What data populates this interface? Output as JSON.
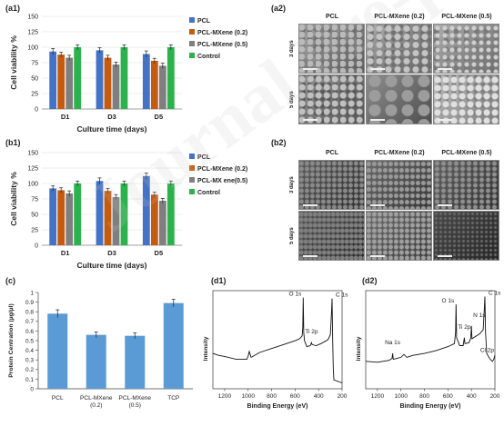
{
  "panel_tags": {
    "a1": "(a1)",
    "a2": "(a2)",
    "b1": "(b1)",
    "b2": "(b2)",
    "c": "(c)",
    "d1": "(d1)",
    "d2": "(d2)"
  },
  "colors": {
    "PCL": "#4472c4",
    "PCL-MXene (0.2)": "#c55a11",
    "PCL-MXene (0.5)": "#7f7f7f",
    "Control": "#2bb24c",
    "protein_bar": "#5b9bd5"
  },
  "chart_data": [
    {
      "id": "a1",
      "type": "bar",
      "title": "",
      "xlabel": "Culture time (days)",
      "ylabel": "Cell viability %",
      "categories": [
        "D1",
        "D3",
        "D5"
      ],
      "ylim": [
        0,
        150
      ],
      "yticks": [
        0,
        25,
        50,
        75,
        100,
        125,
        150
      ],
      "legend_position": "right",
      "series": [
        {
          "name": "PCL",
          "values": [
            93,
            95,
            89
          ],
          "errors": [
            5,
            4,
            5
          ]
        },
        {
          "name": "PCL-MXene (0.2)",
          "values": [
            88,
            83,
            78
          ],
          "errors": [
            4,
            4,
            4
          ]
        },
        {
          "name": "PCL-MXene (0.5)",
          "values": [
            83,
            72,
            70
          ],
          "errors": [
            4,
            4,
            4
          ]
        },
        {
          "name": "Control",
          "values": [
            100,
            100,
            100
          ],
          "errors": [
            4,
            4,
            4
          ]
        }
      ]
    },
    {
      "id": "b1",
      "type": "bar",
      "title": "",
      "xlabel": "Culture time (days)",
      "ylabel": "Cell viability %",
      "categories": [
        "D1",
        "D3",
        "D5"
      ],
      "ylim": [
        0,
        150
      ],
      "yticks": [
        0,
        25,
        50,
        75,
        100,
        125,
        150
      ],
      "legend_position": "right",
      "series": [
        {
          "name": "PCL",
          "values": [
            92,
            104,
            112
          ],
          "errors": [
            4,
            5,
            5
          ]
        },
        {
          "name": "PCL-MXene (0.2)",
          "values": [
            89,
            88,
            82
          ],
          "errors": [
            4,
            4,
            4
          ]
        },
        {
          "name": "PCL-MX ene(0.5)",
          "values": [
            84,
            78,
            72
          ],
          "errors": [
            4,
            4,
            4
          ]
        },
        {
          "name": "Control",
          "values": [
            100,
            100,
            100
          ],
          "errors": [
            4,
            4,
            4
          ]
        }
      ]
    },
    {
      "id": "c",
      "type": "bar",
      "title": "",
      "xlabel": "",
      "ylabel": "Protein Centration (µg/µl)",
      "categories": [
        "PCL",
        "PCL-MXene (0.2)",
        "PCL-MXene (0.5)",
        "TCP"
      ],
      "ylim": [
        0,
        1
      ],
      "yticks": [
        0,
        0.1,
        0.2,
        0.3,
        0.4,
        0.5,
        0.6,
        0.7,
        0.8,
        0.9,
        1
      ],
      "values": [
        0.78,
        0.56,
        0.55,
        0.89
      ],
      "errors": [
        0.04,
        0.03,
        0.03,
        0.04
      ]
    },
    {
      "id": "d1",
      "type": "line",
      "xlabel": "Binding Energy (eV)",
      "ylabel": "Intensity",
      "xlim": [
        1300,
        200
      ],
      "xticks": [
        1200,
        1000,
        800,
        600,
        400,
        200
      ],
      "annotations": [
        {
          "text": "O 1s",
          "x": 531
        },
        {
          "text": "C 1s",
          "x": 285
        },
        {
          "text": "Ti 2p",
          "x": 460
        }
      ],
      "points": [
        [
          1300,
          0.36
        ],
        [
          1250,
          0.34
        ],
        [
          1200,
          0.33
        ],
        [
          1100,
          0.3
        ],
        [
          1010,
          0.3
        ],
        [
          1000,
          0.33
        ],
        [
          990,
          0.38
        ],
        [
          975,
          0.32
        ],
        [
          960,
          0.33
        ],
        [
          900,
          0.37
        ],
        [
          800,
          0.41
        ],
        [
          700,
          0.45
        ],
        [
          600,
          0.49
        ],
        [
          560,
          0.51
        ],
        [
          540,
          0.54
        ],
        [
          535,
          0.62
        ],
        [
          531,
          0.93
        ],
        [
          526,
          0.57
        ],
        [
          520,
          0.49
        ],
        [
          500,
          0.43
        ],
        [
          470,
          0.44
        ],
        [
          460,
          0.47
        ],
        [
          455,
          0.45
        ],
        [
          420,
          0.44
        ],
        [
          380,
          0.46
        ],
        [
          320,
          0.5
        ],
        [
          300,
          0.55
        ],
        [
          290,
          0.78
        ],
        [
          285,
          0.92
        ],
        [
          280,
          0.5
        ],
        [
          275,
          0.22
        ],
        [
          270,
          0.09
        ],
        [
          200,
          0.06
        ]
      ]
    },
    {
      "id": "d2",
      "type": "line",
      "xlabel": "Binding Energy (eV)",
      "ylabel": "Intensity",
      "xlim": [
        1300,
        200
      ],
      "xticks": [
        1200,
        1000,
        800,
        600,
        400,
        200
      ],
      "annotations": [
        {
          "text": "O 1s",
          "x": 531
        },
        {
          "text": "C 1s",
          "x": 285
        },
        {
          "text": "Na 1s",
          "x": 1071
        },
        {
          "text": "Ti 2p",
          "x": 460
        },
        {
          "text": "N 1s",
          "x": 400
        },
        {
          "text": "Cl 2p",
          "x": 200
        }
      ],
      "points": [
        [
          1300,
          0.28
        ],
        [
          1200,
          0.27
        ],
        [
          1100,
          0.29
        ],
        [
          1075,
          0.31
        ],
        [
          1071,
          0.36
        ],
        [
          1065,
          0.3
        ],
        [
          1000,
          0.32
        ],
        [
          975,
          0.35
        ],
        [
          950,
          0.32
        ],
        [
          900,
          0.34
        ],
        [
          800,
          0.36
        ],
        [
          700,
          0.39
        ],
        [
          600,
          0.43
        ],
        [
          545,
          0.46
        ],
        [
          535,
          0.58
        ],
        [
          531,
          0.86
        ],
        [
          526,
          0.52
        ],
        [
          500,
          0.44
        ],
        [
          470,
          0.44
        ],
        [
          460,
          0.52
        ],
        [
          455,
          0.46
        ],
        [
          420,
          0.47
        ],
        [
          405,
          0.52
        ],
        [
          400,
          0.64
        ],
        [
          395,
          0.51
        ],
        [
          330,
          0.56
        ],
        [
          300,
          0.6
        ],
        [
          290,
          0.82
        ],
        [
          285,
          0.94
        ],
        [
          280,
          0.58
        ],
        [
          270,
          0.36
        ],
        [
          240,
          0.3
        ],
        [
          220,
          0.28
        ],
        [
          210,
          0.3
        ],
        [
          200,
          0.34
        ]
      ]
    }
  ],
  "micrographs": [
    {
      "id": "a2",
      "columns": [
        "PCL",
        "PCL-MXene (0.2)",
        "PCL-MXene (0.5)"
      ],
      "rows": [
        "3 days",
        "5 days"
      ]
    },
    {
      "id": "b2",
      "columns": [
        "PCL",
        "PCL-MXene (0.2)",
        "PCL-MXene (0.5)"
      ],
      "rows": [
        "3 days",
        "5 days"
      ]
    }
  ],
  "watermark": "Journal Pre-proof"
}
